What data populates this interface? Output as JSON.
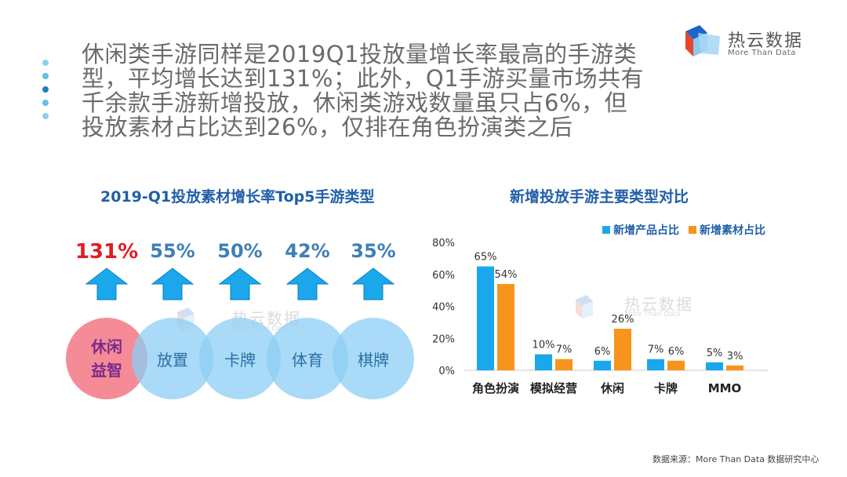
{
  "headline": "休闲类手游同样是2019Q1投放量增长率最高的手游类型，平均增长达到131%；此外，Q1手游买量市场共有千余款手游新增投放，休闲类游戏数量虽只占6%，但投放素材占比达到26%，仅排在角色扮演类之后",
  "logo": {
    "name": "热云数据",
    "tagline": "More Than Data"
  },
  "watermark": {
    "name": "热云数据",
    "tagline": "More Than Data"
  },
  "source": "数据来源：More Than Data 数据研究中心",
  "colors": {
    "blue": "#1aa7ec",
    "orange": "#f7941d",
    "red": "#e21b25",
    "title_blue": "#1f5fa8"
  },
  "chart_data": [
    {
      "type": "bar",
      "title": "2019-Q1投放素材增长率Top5手游类型",
      "categories": [
        "休闲益智",
        "放置",
        "卡牌",
        "体育",
        "棋牌"
      ],
      "category_lines": [
        [
          "休闲",
          "益智"
        ],
        [
          "放置"
        ],
        [
          "卡牌"
        ],
        [
          "体育"
        ],
        [
          "棋牌"
        ]
      ],
      "values": [
        131,
        55,
        50,
        42,
        35
      ],
      "labels": [
        "131%",
        "55%",
        "50%",
        "42%",
        "35%"
      ],
      "unit": "%"
    },
    {
      "type": "bar",
      "title": "新增投放手游主要类型对比",
      "categories": [
        "角色扮演",
        "模拟经营",
        "休闲",
        "卡牌",
        "MMO"
      ],
      "series": [
        {
          "name": "新增产品占比",
          "values": [
            65,
            10,
            6,
            7,
            5
          ],
          "labels": [
            "65%",
            "10%",
            "6%",
            "7%",
            "5%"
          ],
          "color": "#1aa7ec"
        },
        {
          "name": "新增素材占比",
          "values": [
            54,
            7,
            26,
            6,
            3
          ],
          "labels": [
            "54%",
            "7%",
            "26%",
            "6%",
            "3%"
          ],
          "color": "#f7941d"
        }
      ],
      "ylim": [
        0,
        80
      ],
      "yticks": [
        0,
        20,
        40,
        60,
        80
      ],
      "ytick_labels": [
        "0%",
        "20%",
        "40%",
        "60%",
        "80%"
      ],
      "legend": "top-right"
    }
  ]
}
